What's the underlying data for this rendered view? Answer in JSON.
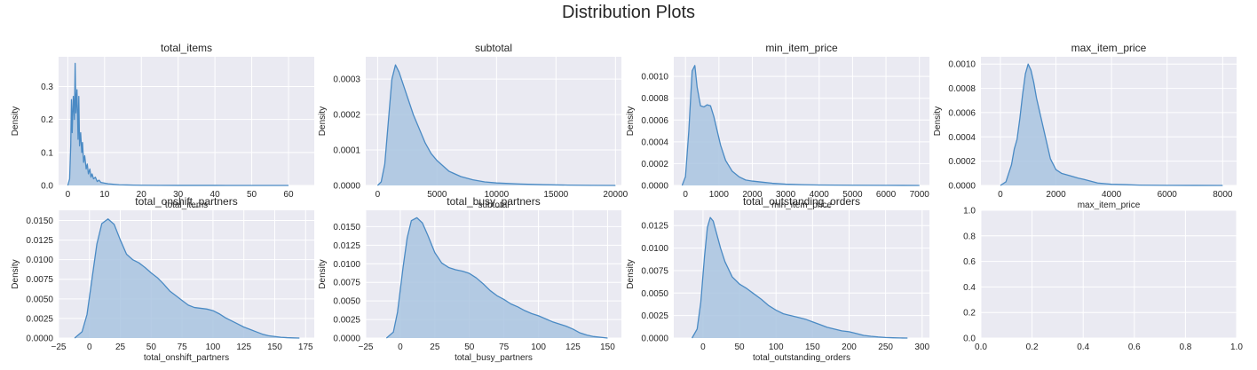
{
  "figure": {
    "title": "Distribution Plots"
  },
  "colors": {
    "fill": "#a9c4e1",
    "line": "#4a8ac4",
    "axes_bg": "#eaeaf2",
    "grid": "#ffffff"
  },
  "chart_data": [
    {
      "type": "area",
      "title": "total_items",
      "xlabel": "total_items",
      "ylabel": "Density",
      "xlim": [
        -2.5,
        67
      ],
      "ylim": [
        0,
        0.39
      ],
      "xticks": [
        0,
        10,
        20,
        30,
        40,
        50,
        60
      ],
      "xtick_labels": [
        "0",
        "10",
        "20",
        "30",
        "40",
        "50",
        "60"
      ],
      "yticks": [
        0,
        0.1,
        0.2,
        0.3
      ],
      "ytick_labels": [
        "0.0",
        "0.1",
        "0.2",
        "0.3"
      ],
      "x": [
        0,
        0.5,
        0.8,
        1,
        1.2,
        1.5,
        1.8,
        2,
        2.2,
        2.5,
        2.8,
        3,
        3.2,
        3.5,
        3.8,
        4,
        4.3,
        4.6,
        5,
        5.3,
        5.6,
        6,
        6.3,
        6.6,
        7,
        7.5,
        8,
        8.5,
        9,
        10,
        11,
        12,
        14,
        16,
        18,
        20,
        25,
        30,
        40,
        50,
        60
      ],
      "y": [
        0,
        0.02,
        0.12,
        0.26,
        0.16,
        0.27,
        0.2,
        0.37,
        0.22,
        0.29,
        0.14,
        0.27,
        0.12,
        0.16,
        0.1,
        0.13,
        0.07,
        0.09,
        0.05,
        0.065,
        0.035,
        0.05,
        0.025,
        0.035,
        0.02,
        0.025,
        0.012,
        0.016,
        0.009,
        0.007,
        0.005,
        0.004,
        0.002,
        0.0015,
        0.001,
        0.0006,
        0.0003,
        0.0002,
        0.0001,
        5e-05,
        0
      ]
    },
    {
      "type": "area",
      "title": "subtotal",
      "xlabel": "subtotal",
      "ylabel": "Density",
      "xlim": [
        -1000,
        20500
      ],
      "ylim": [
        0,
        0.000363
      ],
      "xticks": [
        0,
        5000,
        10000,
        15000,
        20000
      ],
      "xtick_labels": [
        "0",
        "5000",
        "10000",
        "15000",
        "20000"
      ],
      "yticks": [
        0,
        0.0001,
        0.0002,
        0.0003
      ],
      "ytick_labels": [
        "0.0000",
        "0.0001",
        "0.0002",
        "0.0003"
      ],
      "x": [
        0,
        300,
        600,
        900,
        1200,
        1500,
        1800,
        2200,
        2600,
        3000,
        3500,
        4000,
        4500,
        5000,
        6000,
        7000,
        8000,
        9000,
        10000,
        12000,
        14000,
        16000,
        18000,
        20000
      ],
      "y": [
        0,
        1e-05,
        6e-05,
        0.00018,
        0.0003,
        0.00034,
        0.00032,
        0.00028,
        0.00024,
        0.0002,
        0.00016,
        0.00012,
        9e-05,
        7e-05,
        4e-05,
        2.5e-05,
        1.6e-05,
        1e-05,
        7e-06,
        4e-06,
        2e-06,
        1e-06,
        4e-07,
        0
      ]
    },
    {
      "type": "area",
      "title": "min_item_price",
      "xlabel": "min_item_price",
      "ylabel": "Density",
      "xlim": [
        -350,
        7300
      ],
      "ylim": [
        0,
        0.00118
      ],
      "xticks": [
        0,
        1000,
        2000,
        3000,
        4000,
        5000,
        6000,
        7000
      ],
      "xtick_labels": [
        "0",
        "1000",
        "2000",
        "3000",
        "4000",
        "5000",
        "6000",
        "7000"
      ],
      "yticks": [
        0,
        0.0002,
        0.0004,
        0.0006,
        0.0008,
        0.001
      ],
      "ytick_labels": [
        "0.0000",
        "0.0002",
        "0.0004",
        "0.0006",
        "0.0008",
        "0.0010"
      ],
      "x": [
        -100,
        0,
        100,
        200,
        280,
        350,
        450,
        550,
        650,
        750,
        850,
        950,
        1050,
        1200,
        1400,
        1600,
        1800,
        2000,
        2300,
        2600,
        3000,
        3500,
        4000,
        5000,
        6000,
        7000
      ],
      "y": [
        0,
        8e-05,
        0.0005,
        0.00105,
        0.0011,
        0.0009,
        0.00073,
        0.00072,
        0.00074,
        0.00073,
        0.00063,
        0.0005,
        0.00037,
        0.00023,
        0.00013,
        8e-05,
        5e-05,
        4e-05,
        3e-05,
        2e-05,
        1.2e-05,
        7e-06,
        4e-06,
        2e-06,
        1e-06,
        0
      ]
    },
    {
      "type": "area",
      "title": "max_item_price",
      "xlabel": "max_item_price",
      "ylabel": "Density",
      "xlim": [
        -700,
        8500
      ],
      "ylim": [
        0,
        0.00106
      ],
      "xticks": [
        0,
        2000,
        4000,
        6000,
        8000
      ],
      "xtick_labels": [
        "0",
        "2000",
        "4000",
        "6000",
        "8000"
      ],
      "yticks": [
        0,
        0.0002,
        0.0004,
        0.0006,
        0.0008,
        0.001
      ],
      "ytick_labels": [
        "0.0000",
        "0.0002",
        "0.0004",
        "0.0006",
        "0.0008",
        "0.0010"
      ],
      "x": [
        0,
        200,
        400,
        500,
        600,
        700,
        800,
        900,
        1000,
        1100,
        1200,
        1300,
        1400,
        1500,
        1600,
        1800,
        2000,
        2200,
        2500,
        2800,
        3000,
        3500,
        4000,
        5000,
        6000,
        7000,
        8000
      ],
      "y": [
        0,
        3e-05,
        0.00017,
        0.0003,
        0.00038,
        0.00055,
        0.00075,
        0.00092,
        0.001,
        0.00095,
        0.00085,
        0.00072,
        0.00062,
        0.00052,
        0.00042,
        0.00022,
        0.00013,
        0.0001,
        8e-05,
        6e-05,
        5e-05,
        2e-05,
        1e-05,
        3e-06,
        1e-06,
        4e-07,
        0
      ]
    },
    {
      "type": "area",
      "title": "total_onshift_partners",
      "xlabel": "total_onshift_partners",
      "ylabel": "Density",
      "xlim": [
        -25,
        182
      ],
      "ylim": [
        0,
        0.0163
      ],
      "xticks": [
        -25,
        0,
        25,
        50,
        75,
        100,
        125,
        150,
        175
      ],
      "xtick_labels": [
        "−25",
        "0",
        "25",
        "50",
        "75",
        "100",
        "125",
        "150",
        "175"
      ],
      "yticks": [
        0,
        0.0025,
        0.005,
        0.0075,
        0.01,
        0.0125,
        0.015
      ],
      "ytick_labels": [
        "0.0000",
        "0.0025",
        "0.0050",
        "0.0075",
        "0.0100",
        "0.0125",
        "0.0150"
      ],
      "x": [
        -12,
        -6,
        -2,
        2,
        6,
        10,
        15,
        20,
        25,
        30,
        35,
        40,
        45,
        50,
        55,
        60,
        65,
        70,
        75,
        80,
        85,
        90,
        95,
        100,
        105,
        110,
        115,
        120,
        125,
        130,
        135,
        140,
        145,
        150,
        155,
        160,
        165,
        170
      ],
      "y": [
        0,
        0.0008,
        0.003,
        0.0075,
        0.012,
        0.0146,
        0.0152,
        0.0145,
        0.0125,
        0.0107,
        0.01,
        0.0096,
        0.009,
        0.0083,
        0.0077,
        0.0069,
        0.006,
        0.0054,
        0.0048,
        0.0042,
        0.0039,
        0.0038,
        0.0037,
        0.0035,
        0.0031,
        0.0026,
        0.0022,
        0.0018,
        0.0014,
        0.0011,
        0.0008,
        0.0005,
        0.0003,
        0.0002,
        0.0001,
        5e-05,
        2e-05,
        0
      ]
    },
    {
      "type": "area",
      "title": "total_busy_partners",
      "xlabel": "total_busy_partners",
      "ylabel": "Density",
      "xlim": [
        -25,
        160
      ],
      "ylim": [
        0,
        0.0172
      ],
      "xticks": [
        -25,
        0,
        25,
        50,
        75,
        100,
        125,
        150
      ],
      "xtick_labels": [
        "−25",
        "0",
        "25",
        "50",
        "75",
        "100",
        "125",
        "150"
      ],
      "yticks": [
        0,
        0.0025,
        0.005,
        0.0075,
        0.01,
        0.0125,
        0.015
      ],
      "ytick_labels": [
        "0.0000",
        "0.0025",
        "0.0050",
        "0.0075",
        "0.0100",
        "0.0125",
        "0.0150"
      ],
      "x": [
        -10,
        -5,
        -2,
        2,
        5,
        8,
        12,
        16,
        20,
        25,
        30,
        35,
        40,
        45,
        50,
        55,
        60,
        65,
        70,
        75,
        80,
        85,
        90,
        95,
        100,
        105,
        110,
        115,
        120,
        125,
        130,
        135,
        140,
        145,
        150
      ],
      "y": [
        0,
        0.0008,
        0.0035,
        0.0095,
        0.0135,
        0.0158,
        0.0162,
        0.0155,
        0.0138,
        0.0115,
        0.0101,
        0.0095,
        0.0092,
        0.009,
        0.0087,
        0.0081,
        0.0073,
        0.0064,
        0.0057,
        0.0052,
        0.0046,
        0.0042,
        0.0037,
        0.0033,
        0.003,
        0.0026,
        0.0022,
        0.0019,
        0.0016,
        0.0012,
        0.0007,
        0.0004,
        0.0002,
        0.0001,
        0
      ]
    },
    {
      "type": "area",
      "title": "total_outstanding_orders",
      "xlabel": "total_outstanding_orders",
      "ylabel": "Density",
      "xlim": [
        -40,
        310
      ],
      "ylim": [
        0,
        0.0142
      ],
      "xticks": [
        0,
        50,
        100,
        150,
        200,
        250,
        300
      ],
      "xtick_labels": [
        "0",
        "50",
        "100",
        "150",
        "200",
        "250",
        "300"
      ],
      "yticks": [
        0,
        0.0025,
        0.005,
        0.0075,
        0.01,
        0.0125
      ],
      "ytick_labels": [
        "0.0000",
        "0.0025",
        "0.0050",
        "0.0075",
        "0.0100",
        "0.0125"
      ],
      "x": [
        -15,
        -8,
        -3,
        2,
        6,
        10,
        14,
        18,
        24,
        30,
        40,
        50,
        60,
        70,
        80,
        90,
        100,
        110,
        120,
        130,
        140,
        150,
        160,
        170,
        180,
        190,
        200,
        210,
        220,
        230,
        240,
        250,
        260,
        270,
        280
      ],
      "y": [
        0,
        0.001,
        0.004,
        0.009,
        0.0123,
        0.0134,
        0.013,
        0.0118,
        0.01,
        0.0085,
        0.0068,
        0.006,
        0.0055,
        0.0049,
        0.0043,
        0.0036,
        0.0031,
        0.0027,
        0.0025,
        0.0023,
        0.0021,
        0.0018,
        0.0015,
        0.0012,
        0.001,
        0.0008,
        0.0007,
        0.0005,
        0.0003,
        0.0002,
        0.00012,
        6e-05,
        3e-05,
        1e-05,
        0
      ]
    },
    {
      "type": "area",
      "title": "",
      "xlabel": "",
      "ylabel": "",
      "xlim": [
        0,
        1
      ],
      "ylim": [
        0,
        1
      ],
      "xticks": [
        0,
        0.2,
        0.4,
        0.6,
        0.8,
        1
      ],
      "xtick_labels": [
        "0.0",
        "0.2",
        "0.4",
        "0.6",
        "0.8",
        "1.0"
      ],
      "yticks": [
        0,
        0.2,
        0.4,
        0.6,
        0.8,
        1
      ],
      "ytick_labels": [
        "0.0",
        "0.2",
        "0.4",
        "0.6",
        "0.8",
        "1.0"
      ],
      "x": [],
      "y": []
    }
  ]
}
